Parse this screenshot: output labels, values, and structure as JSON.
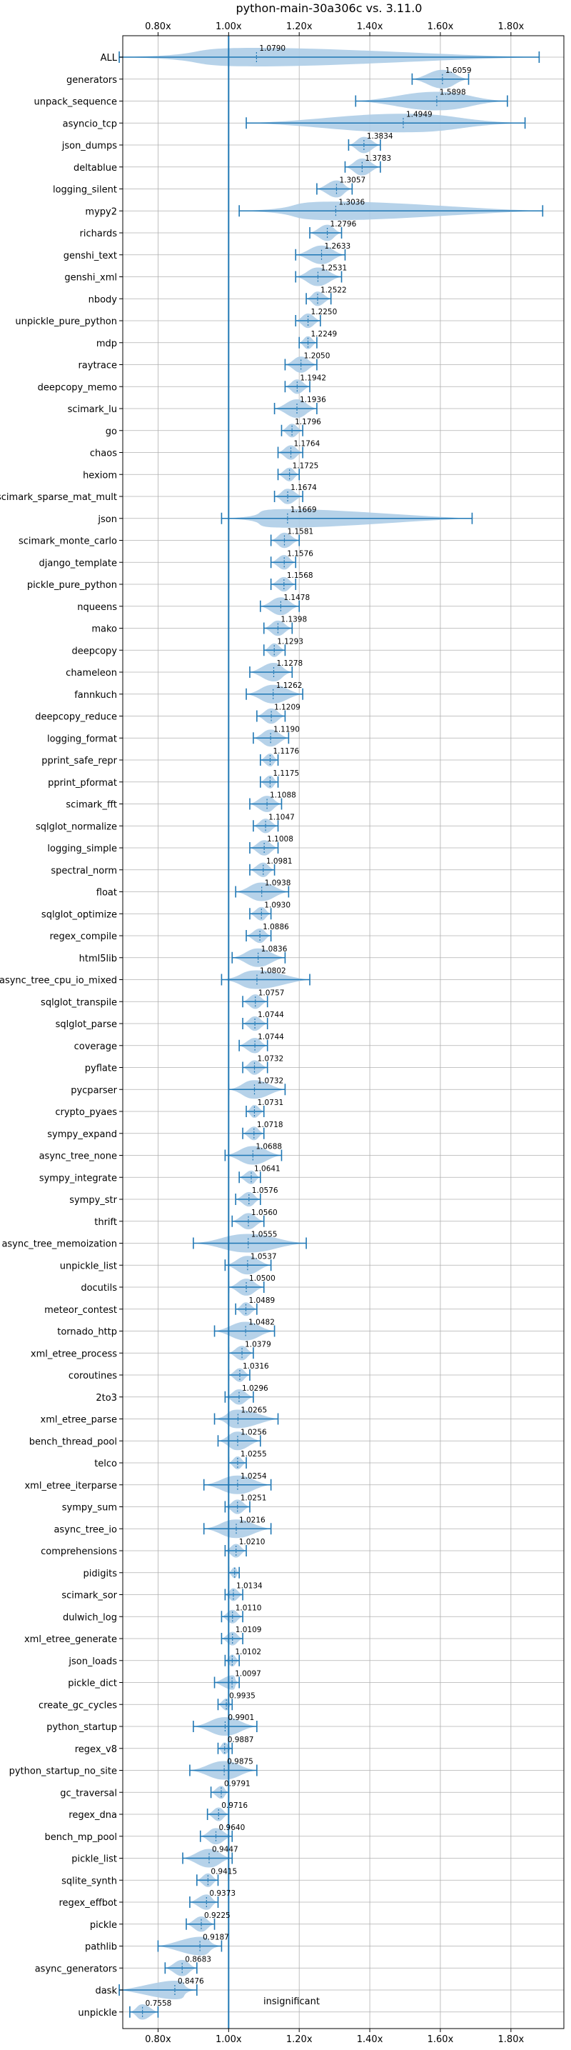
{
  "chart_data": {
    "type": "violin",
    "title": "python-main-30a306c vs. 3.11.0",
    "xlabel": "",
    "ylabel": "",
    "xlim": [
      0.7,
      1.95
    ],
    "x_ticks": [
      0.8,
      1.0,
      1.2,
      1.4,
      1.6,
      1.8
    ],
    "x_tick_labels": [
      "0.80x",
      "1.00x",
      "1.20x",
      "1.40x",
      "1.60x",
      "1.80x"
    ],
    "x_tick_labels_top": [
      "0.80x",
      "1.00x",
      "1.20x",
      "1.40x",
      "1.60x",
      "1.80x"
    ],
    "grid": true,
    "reference_line": 1.0,
    "colors": {
      "violin": "#aecde7",
      "whisker": "#1f77b4",
      "grid": "#b0b0b0",
      "text": "#000000"
    },
    "annotation": "insignificant",
    "series": [
      {
        "name": "ALL",
        "label": "1.0790",
        "mean": 1.079,
        "min": 0.69,
        "max": 1.88
      },
      {
        "name": "generators",
        "label": "1.6059",
        "mean": 1.6059,
        "min": 1.52,
        "max": 1.68
      },
      {
        "name": "unpack_sequence",
        "label": "1.5898",
        "mean": 1.5898,
        "min": 1.36,
        "max": 1.79
      },
      {
        "name": "asyncio_tcp",
        "label": "1.4949",
        "mean": 1.4949,
        "min": 1.05,
        "max": 1.84
      },
      {
        "name": "json_dumps",
        "label": "1.3834",
        "mean": 1.3834,
        "min": 1.34,
        "max": 1.43
      },
      {
        "name": "deltablue",
        "label": "1.3783",
        "mean": 1.3783,
        "min": 1.33,
        "max": 1.43
      },
      {
        "name": "logging_silent",
        "label": "1.3057",
        "mean": 1.3057,
        "min": 1.25,
        "max": 1.35
      },
      {
        "name": "mypy2",
        "label": "1.3036",
        "mean": 1.3036,
        "min": 1.03,
        "max": 1.89
      },
      {
        "name": "richards",
        "label": "1.2796",
        "mean": 1.2796,
        "min": 1.23,
        "max": 1.32
      },
      {
        "name": "genshi_text",
        "label": "1.2633",
        "mean": 1.2633,
        "min": 1.19,
        "max": 1.33
      },
      {
        "name": "genshi_xml",
        "label": "1.2531",
        "mean": 1.2531,
        "min": 1.19,
        "max": 1.32
      },
      {
        "name": "nbody",
        "label": "1.2522",
        "mean": 1.2522,
        "min": 1.22,
        "max": 1.29
      },
      {
        "name": "unpickle_pure_python",
        "label": "1.2250",
        "mean": 1.225,
        "min": 1.19,
        "max": 1.26
      },
      {
        "name": "mdp",
        "label": "1.2249",
        "mean": 1.2249,
        "min": 1.2,
        "max": 1.25
      },
      {
        "name": "raytrace",
        "label": "1.2050",
        "mean": 1.205,
        "min": 1.16,
        "max": 1.25
      },
      {
        "name": "deepcopy_memo",
        "label": "1.1942",
        "mean": 1.1942,
        "min": 1.16,
        "max": 1.23
      },
      {
        "name": "scimark_lu",
        "label": "1.1936",
        "mean": 1.1936,
        "min": 1.13,
        "max": 1.25
      },
      {
        "name": "go",
        "label": "1.1796",
        "mean": 1.1796,
        "min": 1.15,
        "max": 1.21
      },
      {
        "name": "chaos",
        "label": "1.1764",
        "mean": 1.1764,
        "min": 1.14,
        "max": 1.21
      },
      {
        "name": "hexiom",
        "label": "1.1725",
        "mean": 1.1725,
        "min": 1.14,
        "max": 1.2
      },
      {
        "name": "scimark_sparse_mat_mult",
        "label": "1.1674",
        "mean": 1.1674,
        "min": 1.13,
        "max": 1.21
      },
      {
        "name": "json",
        "label": "1.1669",
        "mean": 1.1669,
        "min": 0.98,
        "max": 1.69
      },
      {
        "name": "scimark_monte_carlo",
        "label": "1.1581",
        "mean": 1.1581,
        "min": 1.12,
        "max": 1.2
      },
      {
        "name": "django_template",
        "label": "1.1576",
        "mean": 1.1576,
        "min": 1.12,
        "max": 1.19
      },
      {
        "name": "pickle_pure_python",
        "label": "1.1568",
        "mean": 1.1568,
        "min": 1.12,
        "max": 1.19
      },
      {
        "name": "nqueens",
        "label": "1.1478",
        "mean": 1.1478,
        "min": 1.09,
        "max": 1.2
      },
      {
        "name": "mako",
        "label": "1.1398",
        "mean": 1.1398,
        "min": 1.1,
        "max": 1.18
      },
      {
        "name": "deepcopy",
        "label": "1.1293",
        "mean": 1.1293,
        "min": 1.1,
        "max": 1.16
      },
      {
        "name": "chameleon",
        "label": "1.1278",
        "mean": 1.1278,
        "min": 1.06,
        "max": 1.18
      },
      {
        "name": "fannkuch",
        "label": "1.1262",
        "mean": 1.1262,
        "min": 1.05,
        "max": 1.21
      },
      {
        "name": "deepcopy_reduce",
        "label": "1.1209",
        "mean": 1.1209,
        "min": 1.08,
        "max": 1.16
      },
      {
        "name": "logging_format",
        "label": "1.1190",
        "mean": 1.119,
        "min": 1.07,
        "max": 1.17
      },
      {
        "name": "pprint_safe_repr",
        "label": "1.1176",
        "mean": 1.1176,
        "min": 1.09,
        "max": 1.14
      },
      {
        "name": "pprint_pformat",
        "label": "1.1175",
        "mean": 1.1175,
        "min": 1.09,
        "max": 1.14
      },
      {
        "name": "scimark_fft",
        "label": "1.1088",
        "mean": 1.1088,
        "min": 1.06,
        "max": 1.15
      },
      {
        "name": "sqlglot_normalize",
        "label": "1.1047",
        "mean": 1.1047,
        "min": 1.07,
        "max": 1.14
      },
      {
        "name": "logging_simple",
        "label": "1.1008",
        "mean": 1.1008,
        "min": 1.06,
        "max": 1.14
      },
      {
        "name": "spectral_norm",
        "label": "1.0981",
        "mean": 1.0981,
        "min": 1.06,
        "max": 1.13
      },
      {
        "name": "float",
        "label": "1.0938",
        "mean": 1.0938,
        "min": 1.02,
        "max": 1.17
      },
      {
        "name": "sqlglot_optimize",
        "label": "1.0930",
        "mean": 1.093,
        "min": 1.06,
        "max": 1.12
      },
      {
        "name": "regex_compile",
        "label": "1.0886",
        "mean": 1.0886,
        "min": 1.05,
        "max": 1.12
      },
      {
        "name": "html5lib",
        "label": "1.0836",
        "mean": 1.0836,
        "min": 1.01,
        "max": 1.16
      },
      {
        "name": "async_tree_cpu_io_mixed",
        "label": "1.0802",
        "mean": 1.0802,
        "min": 0.98,
        "max": 1.23
      },
      {
        "name": "sqlglot_transpile",
        "label": "1.0757",
        "mean": 1.0757,
        "min": 1.04,
        "max": 1.11
      },
      {
        "name": "sqlglot_parse",
        "label": "1.0744",
        "mean": 1.0744,
        "min": 1.04,
        "max": 1.11
      },
      {
        "name": "coverage",
        "label": "1.0744",
        "mean": 1.0744,
        "min": 1.03,
        "max": 1.11
      },
      {
        "name": "pyflate",
        "label": "1.0732",
        "mean": 1.0732,
        "min": 1.04,
        "max": 1.11
      },
      {
        "name": "pycparser",
        "label": "1.0732",
        "mean": 1.0732,
        "min": 1.0,
        "max": 1.16
      },
      {
        "name": "crypto_pyaes",
        "label": "1.0731",
        "mean": 1.0731,
        "min": 1.05,
        "max": 1.1
      },
      {
        "name": "sympy_expand",
        "label": "1.0718",
        "mean": 1.0718,
        "min": 1.04,
        "max": 1.1
      },
      {
        "name": "async_tree_none",
        "label": "1.0688",
        "mean": 1.0688,
        "min": 0.99,
        "max": 1.15
      },
      {
        "name": "sympy_integrate",
        "label": "1.0641",
        "mean": 1.0641,
        "min": 1.03,
        "max": 1.09
      },
      {
        "name": "sympy_str",
        "label": "1.0576",
        "mean": 1.0576,
        "min": 1.02,
        "max": 1.09
      },
      {
        "name": "thrift",
        "label": "1.0560",
        "mean": 1.056,
        "min": 1.01,
        "max": 1.1
      },
      {
        "name": "async_tree_memoization",
        "label": "1.0555",
        "mean": 1.0555,
        "min": 0.9,
        "max": 1.22
      },
      {
        "name": "unpickle_list",
        "label": "1.0537",
        "mean": 1.0537,
        "min": 0.99,
        "max": 1.12
      },
      {
        "name": "docutils",
        "label": "1.0500",
        "mean": 1.05,
        "min": 1.0,
        "max": 1.1
      },
      {
        "name": "meteor_contest",
        "label": "1.0489",
        "mean": 1.0489,
        "min": 1.02,
        "max": 1.08
      },
      {
        "name": "tornado_http",
        "label": "1.0482",
        "mean": 1.0482,
        "min": 0.96,
        "max": 1.13
      },
      {
        "name": "xml_etree_process",
        "label": "1.0379",
        "mean": 1.0379,
        "min": 1.0,
        "max": 1.07
      },
      {
        "name": "coroutines",
        "label": "1.0316",
        "mean": 1.0316,
        "min": 1.0,
        "max": 1.06
      },
      {
        "name": "2to3",
        "label": "1.0296",
        "mean": 1.0296,
        "min": 0.99,
        "max": 1.07
      },
      {
        "name": "xml_etree_parse",
        "label": "1.0265",
        "mean": 1.0265,
        "min": 0.96,
        "max": 1.14
      },
      {
        "name": "bench_thread_pool",
        "label": "1.0256",
        "mean": 1.0256,
        "min": 0.97,
        "max": 1.09
      },
      {
        "name": "telco",
        "label": "1.0255",
        "mean": 1.0255,
        "min": 1.0,
        "max": 1.05
      },
      {
        "name": "xml_etree_iterparse",
        "label": "1.0254",
        "mean": 1.0254,
        "min": 0.93,
        "max": 1.12
      },
      {
        "name": "sympy_sum",
        "label": "1.0251",
        "mean": 1.0251,
        "min": 0.99,
        "max": 1.06
      },
      {
        "name": "async_tree_io",
        "label": "1.0216",
        "mean": 1.0216,
        "min": 0.93,
        "max": 1.12
      },
      {
        "name": "comprehensions",
        "label": "1.0210",
        "mean": 1.021,
        "min": 0.99,
        "max": 1.05
      },
      {
        "name": "pidigits",
        "label": "",
        "mean": 1.017,
        "min": 1.0,
        "max": 1.03
      },
      {
        "name": "scimark_sor",
        "label": "1.0134",
        "mean": 1.0134,
        "min": 0.99,
        "max": 1.04
      },
      {
        "name": "dulwich_log",
        "label": "1.0110",
        "mean": 1.011,
        "min": 0.98,
        "max": 1.04
      },
      {
        "name": "xml_etree_generate",
        "label": "1.0109",
        "mean": 1.0109,
        "min": 0.98,
        "max": 1.04
      },
      {
        "name": "json_loads",
        "label": "1.0102",
        "mean": 1.0102,
        "min": 0.99,
        "max": 1.03
      },
      {
        "name": "pickle_dict",
        "label": "1.0097",
        "mean": 1.0097,
        "min": 0.96,
        "max": 1.03
      },
      {
        "name": "create_gc_cycles",
        "label": "0.9935",
        "mean": 0.9935,
        "min": 0.97,
        "max": 1.01
      },
      {
        "name": "python_startup",
        "label": "0.9901",
        "mean": 0.9901,
        "min": 0.9,
        "max": 1.08
      },
      {
        "name": "regex_v8",
        "label": "0.9887",
        "mean": 0.9887,
        "min": 0.97,
        "max": 1.01
      },
      {
        "name": "python_startup_no_site",
        "label": "0.9875",
        "mean": 0.9875,
        "min": 0.89,
        "max": 1.08
      },
      {
        "name": "gc_traversal",
        "label": "0.9791",
        "mean": 0.9791,
        "min": 0.95,
        "max": 1.0
      },
      {
        "name": "regex_dna",
        "label": "0.9716",
        "mean": 0.9716,
        "min": 0.94,
        "max": 1.0
      },
      {
        "name": "bench_mp_pool",
        "label": "0.9640",
        "mean": 0.964,
        "min": 0.92,
        "max": 1.01
      },
      {
        "name": "pickle_list",
        "label": "0.9447",
        "mean": 0.9447,
        "min": 0.87,
        "max": 1.01
      },
      {
        "name": "sqlite_synth",
        "label": "0.9415",
        "mean": 0.9415,
        "min": 0.91,
        "max": 0.97
      },
      {
        "name": "regex_effbot",
        "label": "0.9373",
        "mean": 0.9373,
        "min": 0.89,
        "max": 0.97
      },
      {
        "name": "pickle",
        "label": "0.9225",
        "mean": 0.9225,
        "min": 0.88,
        "max": 0.96
      },
      {
        "name": "pathlib",
        "label": "0.9187",
        "mean": 0.9187,
        "min": 0.8,
        "max": 0.98
      },
      {
        "name": "async_generators",
        "label": "0.8683",
        "mean": 0.8683,
        "min": 0.82,
        "max": 0.91
      },
      {
        "name": "dask",
        "label": "0.8476",
        "mean": 0.8476,
        "min": 0.69,
        "max": 0.91
      },
      {
        "name": "unpickle",
        "label": "0.7558",
        "mean": 0.7558,
        "min": 0.72,
        "max": 0.8
      }
    ]
  }
}
